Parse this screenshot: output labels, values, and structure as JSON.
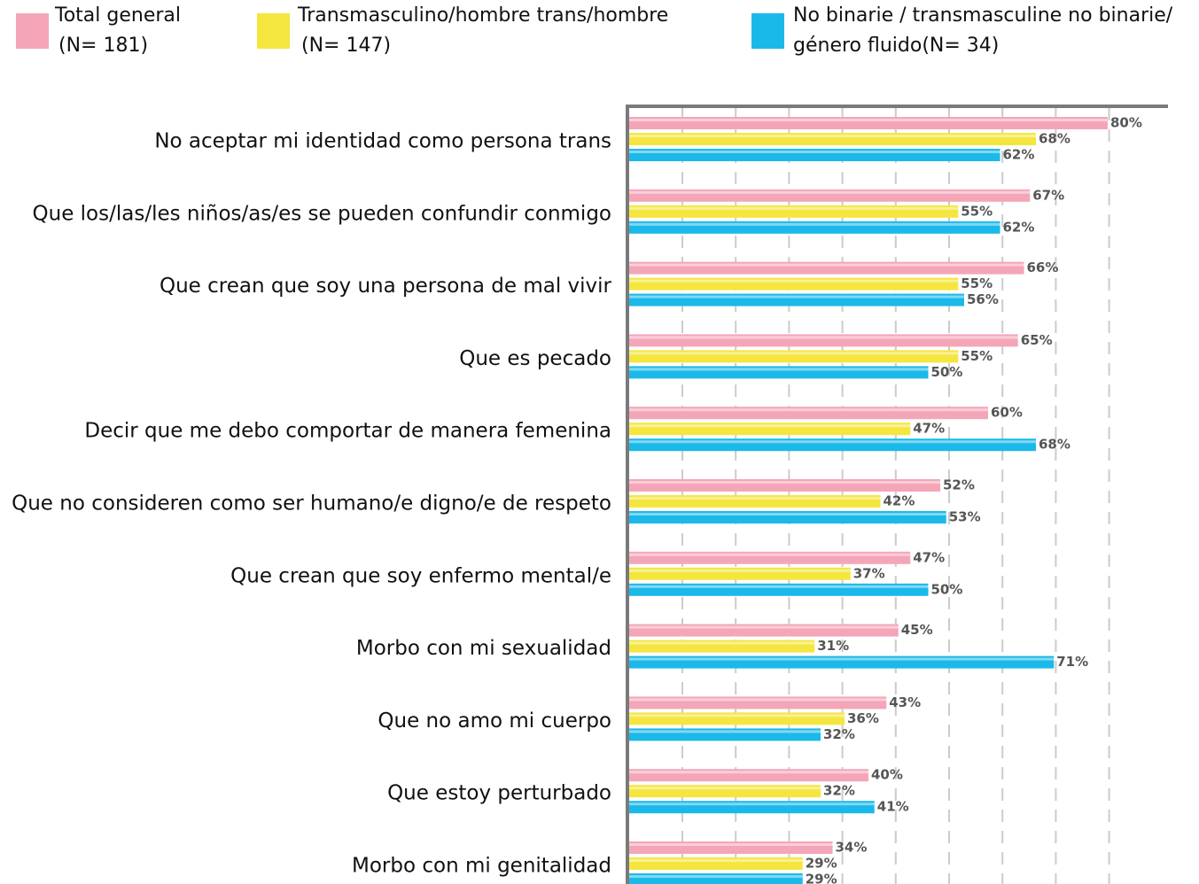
{
  "chart_data": {
    "type": "hbar",
    "categories": [
      "No aceptar mi identidad como persona trans",
      "Que los/las/les niños/as/es se pueden confundir conmigo",
      "Que crean que soy una persona de mal vivir",
      "Que es pecado",
      "Decir que me debo comportar de manera femenina",
      "Que no consideren como ser humano/e digno/e de respeto",
      "Que crean que soy enfermo mental/e",
      "Morbo con mi sexualidad",
      "Que no amo mi cuerpo",
      "Que estoy perturbado",
      "Morbo con mi genitalidad"
    ],
    "series": [
      {
        "name": "Total general",
        "note": "(N= 181)",
        "color": "#f4a6b8",
        "values": [
          80,
          67,
          66,
          65,
          60,
          52,
          47,
          45,
          43,
          40,
          34
        ],
        "value_labels": [
          "80%",
          "67%",
          "66%",
          "65%",
          "60%",
          "52%",
          "47%",
          "45%",
          "43%",
          "40%",
          "34%"
        ]
      },
      {
        "name": "Transmasculino/hombre trans/hombre",
        "note": "(N= 147)",
        "color": "#f5e63f",
        "values": [
          68,
          55,
          55,
          55,
          47,
          42,
          37,
          31,
          36,
          32,
          29
        ],
        "value_labels": [
          "68%",
          "55%",
          "55%",
          "55%",
          "47%",
          "42%",
          "37%",
          "31%",
          "36%",
          "32%",
          "29%"
        ]
      },
      {
        "name": "No binarie / transmasculine no binarie/",
        "note": "género fluido(N= 34)",
        "color": "#1bb9e9",
        "values": [
          62,
          62,
          56,
          50,
          68,
          53,
          50,
          71,
          32,
          41,
          29
        ],
        "value_labels": [
          "62%",
          "62%",
          "56%",
          "50%",
          "68%",
          "53%",
          "50%",
          "71%",
          "32%",
          "41%",
          "29%"
        ]
      }
    ],
    "xlim": [
      0,
      80
    ],
    "grid": true
  }
}
